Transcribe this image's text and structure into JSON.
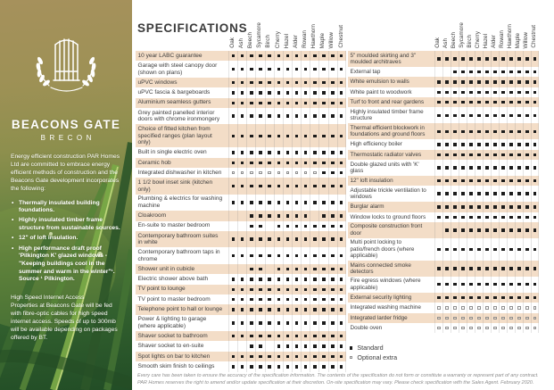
{
  "colors": {
    "row_shade": "#f3ddc7",
    "marker": "#1b1b1b",
    "optional_marker": "#8f8f8f",
    "sidebar_gold": "#a6915c",
    "sidebar_green": "#2f5c2e",
    "text": "#3c3c3c"
  },
  "sidebar": {
    "logo": "gate-with-laurel-wreath",
    "title": "BEACONS GATE",
    "subtitle": "BRECON",
    "intro": "Energy efficient construction PAR Homes Ltd are committed to embrace energy efficient methods of construction and the Beacons Gate development incorporates the following:",
    "bullets": [
      "Thermally insulated building foundations.",
      "Highly insulated timber frame structure from sustainable sources.",
      "12\" of loft insulation.",
      "High performance draft proof 'Pilkington K' glazed windows - \"Keeping buildings cool in the summer and warm in the winter\"¹. Source ¹ Pilkington."
    ],
    "internet_heading": "High Speed Internet Access",
    "internet_text": "Properties at Beacons Gate will be fed with fibre-optic cables for high speed internet access. Speeds of up to 300mb will be available depending on packages offered by BT."
  },
  "main": {
    "heading": "SPECIFICATIONS",
    "house_types": [
      "Oak",
      "Ash",
      "Beech",
      "Sycamore",
      "Birch",
      "Cherry",
      "Hazel",
      "Alder",
      "Rowan",
      "Hawthorn",
      "Maple",
      "Willow",
      "Chestnut"
    ],
    "marks_key": {
      "1": "standard",
      "2": "optional extra",
      "0": "not included"
    },
    "left_table": {
      "rows": [
        {
          "label": "10 year LABC guarantee",
          "marks": "1111111111111"
        },
        {
          "label": "Garage with steel canopy door (shown on plans)",
          "marks": "1111111111111"
        },
        {
          "label": "uPVC windows",
          "marks": "1111111111111"
        },
        {
          "label": "uPVC fascia & bargeboards",
          "marks": "1111111111111"
        },
        {
          "label": "Aluminium seamless gutters",
          "marks": "1111111111111"
        },
        {
          "label": "Grey painted panelled interior doors with chrome ironmongery",
          "marks": "1111111111111"
        },
        {
          "label": "Choice of fitted kitchen from specified ranges (plan layout only)",
          "marks": "1111111111111"
        },
        {
          "label": "Built in single electric oven",
          "marks": "1111111111111"
        },
        {
          "label": "Ceramic hob",
          "marks": "1111111111111"
        },
        {
          "label": "Integrated dishwasher in kitchen",
          "marks": "2222222222111"
        },
        {
          "label": "1 1/2 bowl inset sink (kitchen only)",
          "marks": "1111111111111"
        },
        {
          "label": "Plumbing & electrics for washing machine",
          "marks": "1111111111111"
        },
        {
          "label": "Cloakroom",
          "marks": "0011111110111"
        },
        {
          "label": "En-suite to master bedroom",
          "marks": "0011011111111"
        },
        {
          "label": "Contemporary bathroom suites in white",
          "marks": "1111111111111"
        },
        {
          "label": "Contemporary bathroom taps in chrome",
          "marks": "1111111111111"
        },
        {
          "label": "Shower unit in cubicle",
          "marks": "0011011111111"
        },
        {
          "label": "Electric shower above bath",
          "marks": "1111111111111"
        },
        {
          "label": "TV point to lounge",
          "marks": "1111111111111"
        },
        {
          "label": "TV point to master bedroom",
          "marks": "1111111111111"
        },
        {
          "label": "Telephone point to hall or lounge",
          "marks": "1111111111111"
        },
        {
          "label": "Power & lighting to garage (where applicable)",
          "marks": "1111111111111"
        },
        {
          "label": "Shaver socket to bathroom",
          "marks": "1111111111111"
        },
        {
          "label": "Shaver socket to en-suite",
          "marks": "0011011111111"
        },
        {
          "label": "Spot lights on bar to kitchen",
          "marks": "1111111111111"
        },
        {
          "label": "Smooth skim finish to ceilings",
          "marks": "1111111111111"
        }
      ]
    },
    "right_table": {
      "rows": [
        {
          "label": "5\" moulded skirting and 3\" moulded architraves",
          "marks": "1111111111111"
        },
        {
          "label": "External tap",
          "marks": "0011111111111"
        },
        {
          "label": "White emulsion to walls",
          "marks": "1111111111111"
        },
        {
          "label": "White paint to woodwork",
          "marks": "1111111111111"
        },
        {
          "label": "Turf to front and rear gardens",
          "marks": "1111111111111"
        },
        {
          "label": "Highly insulated timber frame structure",
          "marks": "1111111111111"
        },
        {
          "label": "Thermal efficient blockwork in foundations and ground floors",
          "marks": "1111111111111"
        },
        {
          "label": "High efficiency boiler",
          "marks": "1111111111111"
        },
        {
          "label": "Thermostatic radiator valves",
          "marks": "1111111111111"
        },
        {
          "label": "Double glazed units with 'K' glass",
          "marks": "1111111111111"
        },
        {
          "label": "12\" loft insulation",
          "marks": "1111111111111"
        },
        {
          "label": "Adjustable trickle ventilation to windows",
          "marks": "1111111111111"
        },
        {
          "label": "Burglar alarm",
          "marks": "1111111111111"
        },
        {
          "label": "Window locks to ground floors",
          "marks": "1111111111111"
        },
        {
          "label": "Composite construction front door",
          "marks": "0111111111111"
        },
        {
          "label": "Multi point locking to patio/french doors (where applicable)",
          "marks": "1111111111111"
        },
        {
          "label": "Mains connected smoke detectors",
          "marks": "1111111111111"
        },
        {
          "label": "Fire egress windows (where applicable)",
          "marks": "1111111111111"
        },
        {
          "label": "External security lighting",
          "marks": "1111111111111"
        },
        {
          "label": "Integrated washing machine",
          "marks": "2222222222222"
        },
        {
          "label": "Integrated larder fridge",
          "marks": "2222222222222"
        },
        {
          "label": "Double oven",
          "marks": "2222222222222"
        }
      ]
    },
    "legend": {
      "standard": "Standard",
      "optional": "Optional extra"
    },
    "footer_line1": "Every care has been taken to ensure the accuracy of the specification information. The contents of the specification do not form or constitute a warranty or represent part of any contract.",
    "footer_line2": "PAR Homes reserves the right to amend and/or update specification at their discretion. On-site specification may vary. Please check specification with the Sales Agent. February 2020."
  }
}
